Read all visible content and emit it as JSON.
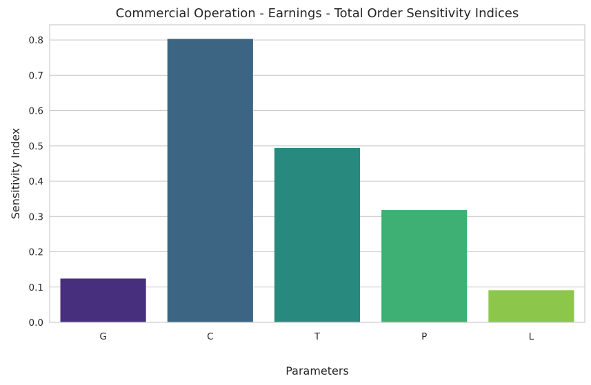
{
  "chart_data": {
    "type": "bar",
    "title": "Commercial Operation - Earnings - Total Order Sensitivity Indices",
    "xlabel": "Parameters",
    "ylabel": "Sensitivity Index",
    "categories": [
      "G",
      "C",
      "T",
      "P",
      "L"
    ],
    "values": [
      0.124,
      0.803,
      0.494,
      0.318,
      0.091
    ],
    "colors": [
      "#472f7d",
      "#3b6582",
      "#288a7f",
      "#3fb073",
      "#8cc74c"
    ],
    "yticks": [
      0.0,
      0.1,
      0.2,
      0.3,
      0.4,
      0.5,
      0.6,
      0.7,
      0.8
    ],
    "ytick_labels": [
      "0.0",
      "0.1",
      "0.2",
      "0.3",
      "0.4",
      "0.5",
      "0.6",
      "0.7",
      "0.8"
    ],
    "ylim": [
      0,
      0.843
    ],
    "grid": true
  }
}
